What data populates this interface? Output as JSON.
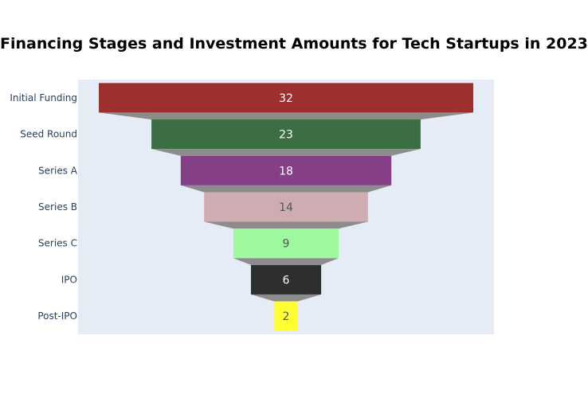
{
  "chart_data": {
    "type": "funnel",
    "title": "Financing Stages and Investment Amounts for Tech Startups in 2023",
    "categories": [
      "Initial Funding",
      "Seed Round",
      "Series A",
      "Series B",
      "Series C",
      "IPO",
      "Post-IPO"
    ],
    "values": [
      32,
      23,
      18,
      14,
      9,
      6,
      2
    ],
    "colors": [
      "#9e2f2f",
      "#3b6e42",
      "#843f86",
      "#cfacb2",
      "#9ffa9f",
      "#2d2e30",
      "#ffff33"
    ],
    "value_label_colors": [
      "#ffffff",
      "#ffffff",
      "#ffffff",
      "#555555",
      "#555555",
      "#ffffff",
      "#555555"
    ],
    "connector_color": "#8c8c8c",
    "plot_background": "#e5ecf6",
    "xlabel": "",
    "ylabel": "",
    "legend": "none"
  }
}
